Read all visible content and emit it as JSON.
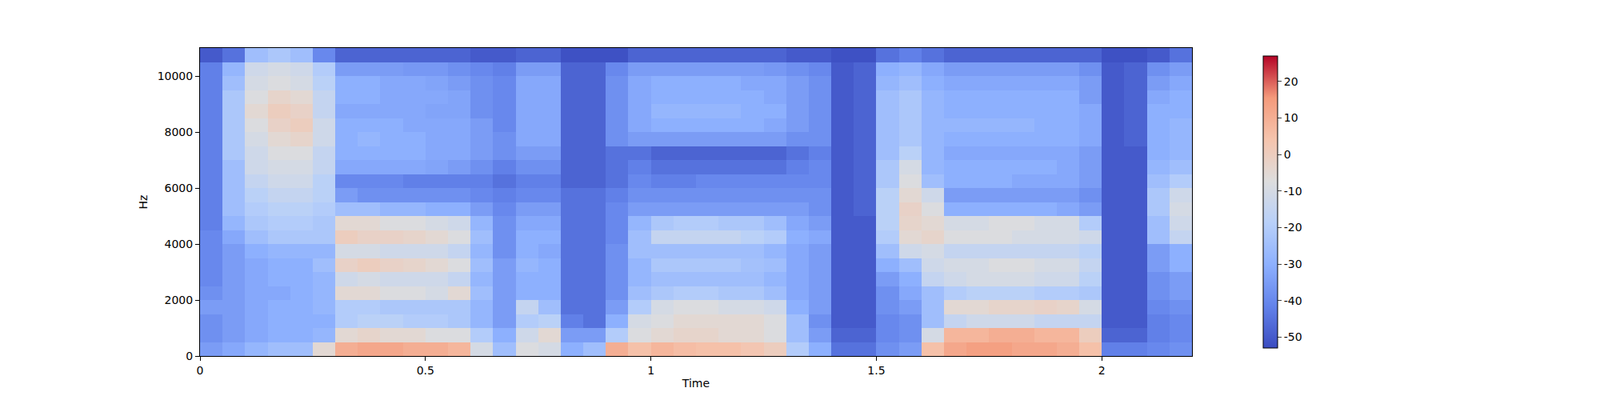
{
  "chart_data": {
    "type": "heatmap",
    "xlabel": "Time",
    "ylabel": "Hz",
    "xlim": [
      0,
      2.2
    ],
    "ylim": [
      0,
      11000
    ],
    "xticks": [
      0,
      0.5,
      1,
      1.5,
      2
    ],
    "yticks": [
      0,
      2000,
      4000,
      6000,
      8000,
      10000
    ],
    "zlim": [
      -53,
      27
    ],
    "zticks": [
      -50,
      -40,
      -30,
      -20,
      -10,
      0,
      10,
      20
    ],
    "x": [
      0.025,
      0.075,
      0.125,
      0.175,
      0.225,
      0.275,
      0.325,
      0.375,
      0.425,
      0.475,
      0.525,
      0.575,
      0.625,
      0.675,
      0.725,
      0.775,
      0.825,
      0.875,
      0.925,
      0.975,
      1.025,
      1.075,
      1.125,
      1.175,
      1.225,
      1.275,
      1.325,
      1.375,
      1.425,
      1.475,
      1.525,
      1.575,
      1.625,
      1.675,
      1.725,
      1.775,
      1.825,
      1.875,
      1.925,
      1.975,
      2.025,
      2.075,
      2.125,
      2.175
    ],
    "y": [
      250,
      750,
      1250,
      1750,
      2250,
      2750,
      3250,
      3750,
      4250,
      4750,
      5250,
      5750,
      6250,
      6750,
      7250,
      7750,
      8250,
      8750,
      9250,
      9750,
      10250,
      10750
    ],
    "z": [
      [
        -35,
        -38,
        -38,
        -35,
        -38,
        -40,
        -40,
        -40,
        -40,
        -42,
        -42,
        -42,
        -42,
        -42,
        -42,
        -42,
        -42,
        -42,
        -42,
        -42,
        -42,
        -50
      ],
      [
        -32,
        -35,
        -35,
        -35,
        -35,
        -35,
        -35,
        -35,
        -32,
        -28,
        -25,
        -25,
        -25,
        -25,
        -22,
        -22,
        -22,
        -22,
        -22,
        -25,
        -28,
        -45
      ],
      [
        -28,
        -32,
        -32,
        -32,
        -32,
        -32,
        -32,
        -30,
        -25,
        -22,
        -20,
        -18,
        -15,
        -12,
        -12,
        -10,
        -8,
        -5,
        -8,
        -10,
        -12,
        -25
      ],
      [
        -25,
        -30,
        -30,
        -30,
        -32,
        -30,
        -30,
        -28,
        -22,
        -20,
        -18,
        -15,
        -12,
        -10,
        -8,
        -5,
        -2,
        0,
        -3,
        -8,
        -10,
        -22
      ],
      [
        -25,
        -30,
        -30,
        -30,
        -30,
        -30,
        -30,
        -28,
        -22,
        -20,
        -18,
        -15,
        -12,
        -10,
        -8,
        -3,
        0,
        -2,
        -5,
        -10,
        -12,
        -25
      ],
      [
        -5,
        -28,
        -30,
        -28,
        -28,
        -28,
        -25,
        -28,
        -22,
        -22,
        -20,
        -18,
        -18,
        -15,
        -15,
        -12,
        -12,
        -15,
        -15,
        -18,
        -20,
        -40
      ],
      [
        10,
        -5,
        -20,
        -20,
        -5,
        -12,
        -2,
        -10,
        0,
        -5,
        -25,
        -35,
        -40,
        -32,
        -30,
        -30,
        -30,
        -32,
        -30,
        -30,
        -35,
        -48
      ],
      [
        12,
        -3,
        -18,
        -20,
        -5,
        -10,
        0,
        -10,
        -2,
        -5,
        -25,
        -38,
        -40,
        -32,
        -30,
        -28,
        -30,
        -32,
        -30,
        -30,
        -35,
        -48
      ],
      [
        12,
        -5,
        -18,
        -22,
        -8,
        -12,
        -2,
        -12,
        -2,
        -8,
        -28,
        -38,
        -40,
        -32,
        -30,
        -30,
        -30,
        -32,
        -32,
        -32,
        -35,
        -48
      ],
      [
        10,
        -5,
        -20,
        -22,
        -8,
        -12,
        -3,
        -12,
        -3,
        -8,
        -28,
        -38,
        -42,
        -32,
        -30,
        -30,
        -32,
        -32,
        -32,
        -32,
        -36,
        -48
      ],
      [
        10,
        -8,
        -20,
        -22,
        -10,
        -12,
        -5,
        -12,
        -5,
        -10,
        -30,
        -38,
        -42,
        -33,
        -32,
        -32,
        -32,
        -33,
        -32,
        -33,
        -36,
        -48
      ],
      [
        8,
        -8,
        -22,
        -22,
        -5,
        -15,
        -8,
        -15,
        -8,
        -12,
        -30,
        -38,
        -42,
        -35,
        -32,
        -32,
        -32,
        -33,
        -33,
        -35,
        -38,
        -48
      ],
      [
        -10,
        -20,
        -28,
        -28,
        -25,
        -28,
        -25,
        -28,
        -25,
        -28,
        -35,
        -40,
        -42,
        -38,
        -35,
        -35,
        -35,
        -38,
        -38,
        -38,
        -40,
        -50
      ],
      [
        -25,
        -30,
        -35,
        -35,
        -35,
        -35,
        -35,
        -38,
        -38,
        -38,
        -40,
        -42,
        -45,
        -42,
        -38,
        -38,
        -40,
        -40,
        -40,
        -40,
        -42,
        -50
      ],
      [
        -8,
        -12,
        -20,
        -15,
        -30,
        -30,
        -28,
        -30,
        -30,
        -32,
        -35,
        -40,
        -42,
        -38,
        -35,
        -32,
        -32,
        -32,
        -32,
        -32,
        -35,
        -48
      ],
      [
        -10,
        -5,
        -18,
        -25,
        -30,
        -30,
        -30,
        -32,
        -30,
        -32,
        -35,
        -40,
        -42,
        -38,
        -35,
        -32,
        -32,
        -32,
        -32,
        -32,
        -35,
        -48
      ],
      [
        -30,
        -35,
        -42,
        -45,
        -45,
        -45,
        -45,
        -45,
        -45,
        -45,
        -45,
        -45,
        -48,
        -48,
        -48,
        -48,
        -48,
        -48,
        -48,
        -48,
        -48,
        -52
      ],
      [
        -25,
        -35,
        -45,
        -45,
        -45,
        -45,
        -45,
        -45,
        -45,
        -45,
        -45,
        -45,
        -48,
        -48,
        -48,
        -48,
        -48,
        -48,
        -48,
        -48,
        -48,
        -52
      ],
      [
        10,
        -20,
        -30,
        -35,
        -38,
        -38,
        -38,
        -38,
        -40,
        -40,
        -40,
        -42,
        -45,
        -45,
        -45,
        -38,
        -38,
        -38,
        -38,
        -38,
        -40,
        -52
      ],
      [
        5,
        -8,
        -10,
        -20,
        -25,
        -28,
        -28,
        -25,
        -25,
        -28,
        -35,
        -38,
        -40,
        -42,
        -45,
        -35,
        -32,
        -32,
        -32,
        -32,
        -35,
        -48
      ],
      [
        8,
        -5,
        -8,
        -10,
        -22,
        -25,
        -22,
        -25,
        -15,
        -22,
        -35,
        -38,
        -42,
        -45,
        -48,
        -35,
        -30,
        -28,
        -30,
        -30,
        -35,
        -48
      ],
      [
        6,
        -3,
        -5,
        -8,
        -20,
        -25,
        -22,
        -25,
        -15,
        -20,
        -35,
        -38,
        -42,
        -45,
        -48,
        -35,
        -30,
        -28,
        -30,
        -30,
        -35,
        -48
      ],
      [
        5,
        -3,
        -5,
        -8,
        -20,
        -25,
        -22,
        -25,
        -15,
        -20,
        -35,
        -38,
        -40,
        -45,
        -48,
        -35,
        -30,
        -28,
        -30,
        -30,
        -35,
        -48
      ],
      [
        5,
        -5,
        -5,
        -10,
        -22,
        -25,
        -22,
        -25,
        -15,
        -22,
        -35,
        -38,
        -40,
        -45,
        -48,
        -35,
        -30,
        -28,
        -30,
        -30,
        -35,
        -48
      ],
      [
        3,
        -5,
        -5,
        -10,
        -22,
        -25,
        -24,
        -25,
        -18,
        -22,
        -35,
        -38,
        -40,
        -45,
        -48,
        -35,
        -30,
        -30,
        -30,
        -32,
        -35,
        -48
      ],
      [
        0,
        -8,
        -8,
        -12,
        -25,
        -28,
        -25,
        -28,
        -20,
        -25,
        -35,
        -38,
        -40,
        -45,
        -48,
        -35,
        -32,
        -30,
        -32,
        -32,
        -36,
        -48
      ],
      [
        -20,
        -25,
        -25,
        -30,
        -32,
        -32,
        -32,
        -32,
        -30,
        -32,
        -35,
        -38,
        -40,
        -42,
        -45,
        -38,
        -35,
        -35,
        -35,
        -35,
        -38,
        -50
      ],
      [
        -30,
        -35,
        -38,
        -35,
        -35,
        -35,
        -35,
        -35,
        -32,
        -35,
        -38,
        -38,
        -40,
        -40,
        -42,
        -38,
        -38,
        -38,
        -38,
        -38,
        -40,
        -50
      ],
      [
        -45,
        -48,
        -50,
        -50,
        -50,
        -50,
        -50,
        -50,
        -50,
        -50,
        -50,
        -50,
        -50,
        -50,
        -50,
        -50,
        -50,
        -50,
        -50,
        -50,
        -50,
        -52
      ],
      [
        -45,
        -48,
        -50,
        -50,
        -50,
        -50,
        -50,
        -50,
        -50,
        -50,
        -48,
        -48,
        -48,
        -48,
        -48,
        -48,
        -48,
        -48,
        -48,
        -48,
        -48,
        -52
      ],
      [
        -38,
        -40,
        -40,
        -38,
        -38,
        -35,
        -30,
        -25,
        -20,
        -18,
        -18,
        -18,
        -22,
        -22,
        -25,
        -25,
        -25,
        -25,
        -25,
        -28,
        -30,
        -45
      ],
      [
        -35,
        -38,
        -38,
        -35,
        -32,
        -30,
        -25,
        -12,
        -5,
        -3,
        -2,
        -5,
        -8,
        -10,
        -18,
        -22,
        -22,
        -22,
        -22,
        -25,
        -28,
        -42
      ],
      [
        5,
        -10,
        -25,
        -25,
        -25,
        -15,
        -12,
        -10,
        -3,
        -5,
        -8,
        -12,
        -25,
        -28,
        -28,
        -28,
        -28,
        -28,
        -28,
        -30,
        -32,
        -45
      ],
      [
        12,
        8,
        -15,
        -5,
        -20,
        -12,
        -10,
        -15,
        -8,
        -10,
        -30,
        -35,
        -30,
        -30,
        -32,
        -30,
        -28,
        -30,
        -30,
        -32,
        -35,
        -48
      ],
      [
        14,
        8,
        -12,
        -5,
        -18,
        -10,
        -10,
        -15,
        -8,
        -10,
        -30,
        -35,
        -30,
        -30,
        -32,
        -30,
        -28,
        -30,
        -30,
        -32,
        -35,
        -48
      ],
      [
        14,
        10,
        -12,
        -3,
        -18,
        -10,
        -8,
        -15,
        -8,
        -8,
        -30,
        -35,
        -30,
        -30,
        -32,
        -30,
        -28,
        -30,
        -30,
        -32,
        -35,
        -48
      ],
      [
        12,
        10,
        -12,
        -3,
        -18,
        -10,
        -8,
        -15,
        -10,
        -8,
        -30,
        -35,
        -32,
        -30,
        -32,
        -30,
        -28,
        -30,
        -30,
        -32,
        -35,
        -48
      ],
      [
        12,
        8,
        -15,
        -2,
        -20,
        -12,
        -10,
        -15,
        -10,
        -10,
        -30,
        -35,
        -32,
        -30,
        -32,
        -30,
        -30,
        -30,
        -30,
        -32,
        -35,
        -48
      ],
      [
        10,
        8,
        -15,
        -3,
        -20,
        -12,
        -10,
        -15,
        -10,
        -10,
        -32,
        -35,
        -32,
        -32,
        -32,
        -30,
        -30,
        -30,
        -30,
        -32,
        -35,
        -48
      ],
      [
        5,
        0,
        -15,
        -10,
        -22,
        -18,
        -15,
        -18,
        -12,
        -20,
        -35,
        -38,
        -35,
        -35,
        -35,
        -32,
        -32,
        -32,
        -35,
        -35,
        -38,
        -48
      ],
      [
        -42,
        -48,
        -50,
        -50,
        -50,
        -50,
        -50,
        -50,
        -50,
        -50,
        -50,
        -50,
        -50,
        -50,
        -50,
        -50,
        -50,
        -50,
        -50,
        -50,
        -50,
        -52
      ],
      [
        -42,
        -48,
        -50,
        -50,
        -50,
        -50,
        -50,
        -50,
        -50,
        -50,
        -50,
        -50,
        -50,
        -50,
        -50,
        -48,
        -48,
        -48,
        -48,
        -48,
        -48,
        -52
      ],
      [
        -40,
        -42,
        -42,
        -40,
        -38,
        -38,
        -35,
        -35,
        -25,
        -25,
        -22,
        -22,
        -25,
        -28,
        -30,
        -30,
        -30,
        -30,
        -32,
        -35,
        -38,
        -50
      ],
      [
        -38,
        -40,
        -40,
        -38,
        -35,
        -35,
        -30,
        -30,
        -15,
        -12,
        -10,
        -12,
        -20,
        -25,
        -28,
        -28,
        -28,
        -30,
        -30,
        -32,
        -35,
        -45
      ]
    ]
  }
}
